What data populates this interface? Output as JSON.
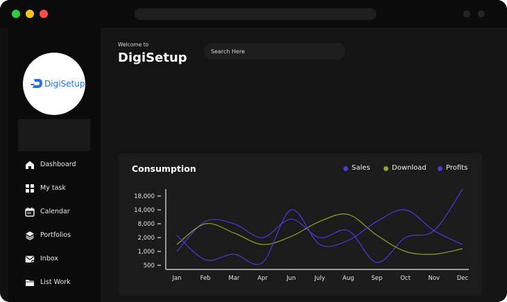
{
  "window": {
    "controls": {
      "close_color": "#2ecc40",
      "minimize_color": "#f5c518",
      "maximize_color": "#ff4b4b"
    }
  },
  "sidebar": {
    "logo_text": "DigiSetup",
    "items": [
      {
        "label": "Dashboard",
        "icon": "home-icon"
      },
      {
        "label": "My task",
        "icon": "grid-icon"
      },
      {
        "label": "Calendar",
        "icon": "calendar-icon"
      },
      {
        "label": "Portfolios",
        "icon": "layers-icon"
      },
      {
        "label": "Inbox",
        "icon": "inbox-icon"
      },
      {
        "label": "List Work",
        "icon": "folder-icon"
      }
    ]
  },
  "header": {
    "welcome": "Welcome to",
    "brand": "DigiSetup",
    "search_placeholder": "Search Here"
  },
  "chart_card": {
    "title": "Consumption"
  },
  "chart_data": {
    "type": "line",
    "title": "Consumption",
    "categories": [
      "Jan",
      "Feb",
      "Mar",
      "Apr",
      "Jun",
      "July",
      "Aug",
      "Sep",
      "Oct",
      "Nov",
      "Dec"
    ],
    "y_ticks": [
      "18,000",
      "14,000",
      "8,000",
      "2,000",
      "1,000",
      "500"
    ],
    "series": [
      {
        "name": "Sales",
        "color": "#4b3bd8",
        "values": [
          1000,
          9000,
          8000,
          2000,
          10000,
          2000,
          5000,
          600,
          2000,
          5000,
          22000
        ]
      },
      {
        "name": "Download",
        "color": "#8fa61e",
        "values": [
          1500,
          8000,
          4000,
          1500,
          2500,
          9000,
          12000,
          3000,
          1000,
          900,
          1200
        ]
      },
      {
        "name": "Profits",
        "color": "#4b3bd8",
        "values": [
          3000,
          700,
          900,
          600,
          14000,
          1500,
          1800,
          9000,
          14000,
          5000,
          1500
        ]
      }
    ],
    "legend_position": "top-right",
    "grid": false
  }
}
